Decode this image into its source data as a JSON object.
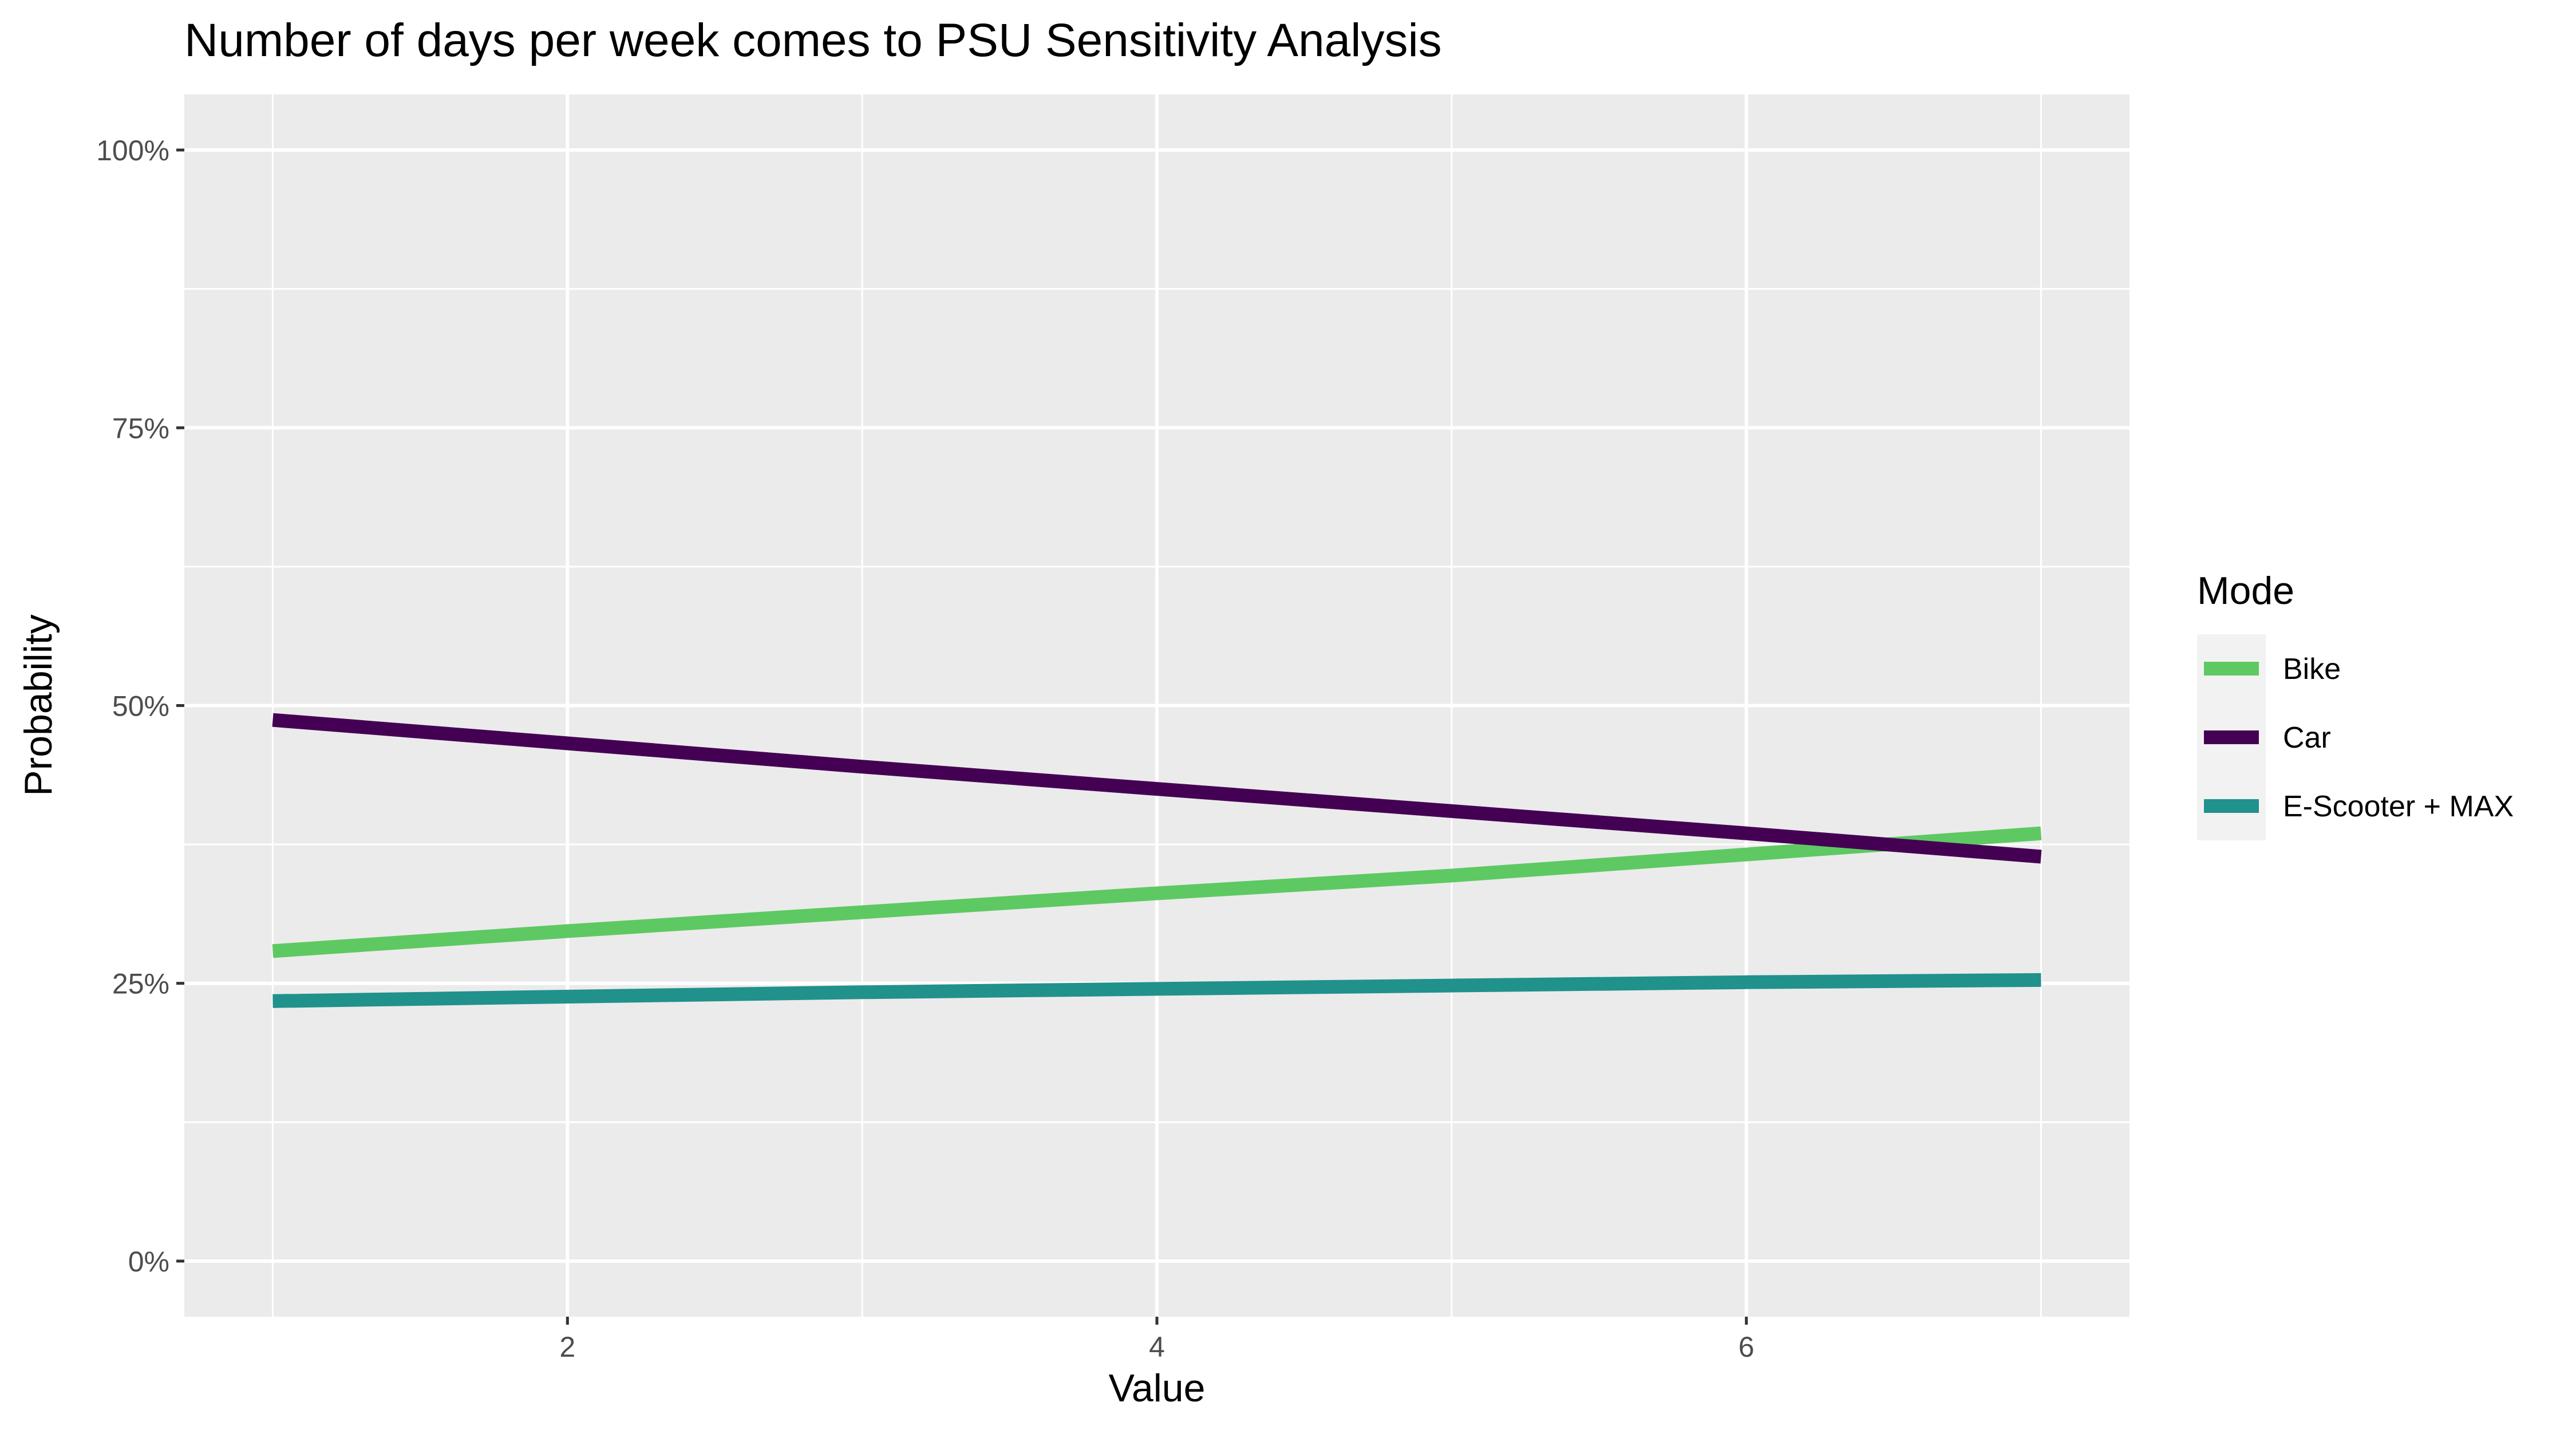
{
  "chart_data": {
    "type": "line",
    "title": "Number of days per week comes to PSU Sensitivity Analysis",
    "xlabel": "Value",
    "ylabel": "Probability",
    "xlim": [
      0.7,
      7.3
    ],
    "ylim": [
      -0.05,
      1.05
    ],
    "x_ticks": [
      2,
      4,
      6
    ],
    "x_tick_labels": [
      "2",
      "4",
      "6"
    ],
    "x_minor_ticks": [
      1,
      3,
      5,
      7
    ],
    "y_ticks": [
      0,
      0.25,
      0.5,
      0.75,
      1.0
    ],
    "y_tick_labels": [
      "0%",
      "25%",
      "50%",
      "75%",
      "100%"
    ],
    "y_minor_ticks": [
      0.125,
      0.375,
      0.625,
      0.875
    ],
    "grid": true,
    "panel_background": "#ebebeb",
    "legend": {
      "title": "Mode",
      "position": "right"
    },
    "series": [
      {
        "name": "Bike",
        "color": "#5ec962",
        "x": [
          1,
          2,
          3,
          4,
          5,
          6,
          7
        ],
        "values": [
          0.279,
          0.297,
          0.314,
          0.331,
          0.347,
          0.366,
          0.385
        ]
      },
      {
        "name": "Car",
        "color": "#440154",
        "x": [
          1,
          2,
          3,
          4,
          5,
          6,
          7
        ],
        "values": [
          0.487,
          0.466,
          0.445,
          0.425,
          0.405,
          0.385,
          0.364
        ]
      },
      {
        "name": "E-Scooter + MAX",
        "color": "#21918c",
        "x": [
          1,
          2,
          3,
          4,
          5,
          6,
          7
        ],
        "values": [
          0.234,
          0.238,
          0.242,
          0.245,
          0.248,
          0.251,
          0.253
        ]
      }
    ]
  }
}
